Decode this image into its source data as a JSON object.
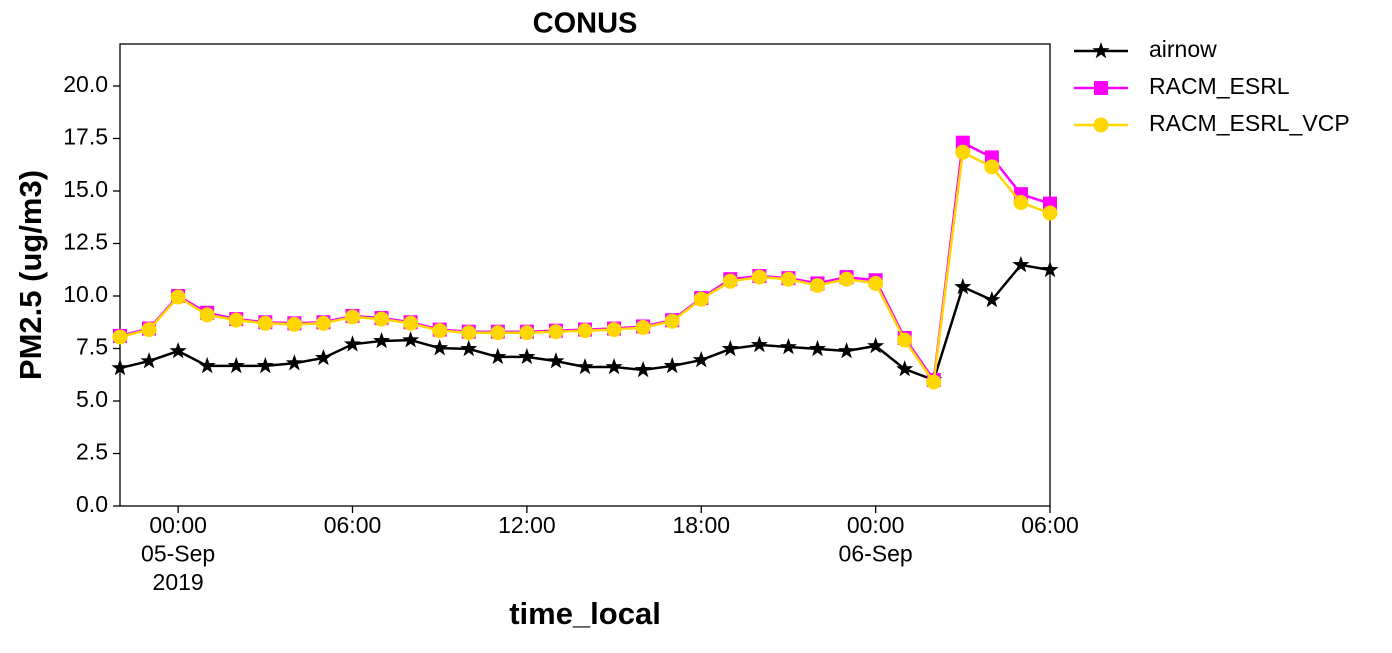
{
  "chart_data": {
    "type": "line",
    "title": "CONUS",
    "x_label": "time_local",
    "y_label": "PM2.5 (ug/m3)",
    "x": [
      "2019-09-04 22:00",
      "2019-09-04 23:00",
      "2019-09-05 00:00",
      "2019-09-05 01:00",
      "2019-09-05 02:00",
      "2019-09-05 03:00",
      "2019-09-05 04:00",
      "2019-09-05 05:00",
      "2019-09-05 06:00",
      "2019-09-05 07:00",
      "2019-09-05 08:00",
      "2019-09-05 09:00",
      "2019-09-05 10:00",
      "2019-09-05 11:00",
      "2019-09-05 12:00",
      "2019-09-05 13:00",
      "2019-09-05 14:00",
      "2019-09-05 15:00",
      "2019-09-05 16:00",
      "2019-09-05 17:00",
      "2019-09-05 18:00",
      "2019-09-05 19:00",
      "2019-09-05 20:00",
      "2019-09-05 21:00",
      "2019-09-05 22:00",
      "2019-09-05 23:00",
      "2019-09-06 00:00",
      "2019-09-06 01:00",
      "2019-09-06 02:00",
      "2019-09-06 03:00",
      "2019-09-06 04:00",
      "2019-09-06 05:00",
      "2019-09-06 06:00"
    ],
    "series": [
      {
        "name": "airnow",
        "color": "#000000",
        "marker": "star",
        "values": [
          6.57,
          6.9,
          7.38,
          6.67,
          6.67,
          6.67,
          6.8,
          7.05,
          7.7,
          7.86,
          7.9,
          7.52,
          7.48,
          7.1,
          7.1,
          6.9,
          6.62,
          6.62,
          6.48,
          6.67,
          6.95,
          7.48,
          7.67,
          7.57,
          7.48,
          7.38,
          7.62,
          6.52,
          6.0,
          10.43,
          9.81,
          11.48,
          11.24
        ]
      },
      {
        "name": "RACM_ESRL",
        "color": "#ff00ff",
        "marker": "square",
        "values": [
          8.1,
          8.45,
          10.0,
          9.2,
          8.9,
          8.75,
          8.7,
          8.75,
          9.05,
          8.95,
          8.75,
          8.4,
          8.3,
          8.3,
          8.3,
          8.35,
          8.4,
          8.45,
          8.55,
          8.85,
          9.9,
          10.8,
          10.95,
          10.85,
          10.6,
          10.9,
          10.75,
          8.0,
          6.0,
          17.3,
          16.6,
          14.85,
          14.4
        ]
      },
      {
        "name": "RACM_ESRL_VCP",
        "color": "#ffd700",
        "marker": "circle",
        "values": [
          8.05,
          8.4,
          9.95,
          9.1,
          8.85,
          8.7,
          8.65,
          8.7,
          9.0,
          8.9,
          8.7,
          8.35,
          8.25,
          8.25,
          8.25,
          8.3,
          8.35,
          8.4,
          8.5,
          8.8,
          9.85,
          10.7,
          10.9,
          10.8,
          10.5,
          10.8,
          10.6,
          7.9,
          5.9,
          16.85,
          16.15,
          14.45,
          13.95
        ]
      }
    ],
    "xlim": [
      "2019-09-04 22:00",
      "2019-09-06 06:00"
    ],
    "xticks": [
      {
        "value": "2019-09-05 00:00",
        "label": [
          "00:00",
          "05-Sep",
          "2019"
        ]
      },
      {
        "value": "2019-09-05 06:00",
        "label": [
          "06:00"
        ]
      },
      {
        "value": "2019-09-05 12:00",
        "label": [
          "12:00"
        ]
      },
      {
        "value": "2019-09-05 18:00",
        "label": [
          "18:00"
        ]
      },
      {
        "value": "2019-09-06 00:00",
        "label": [
          "00:00",
          "06-Sep"
        ]
      },
      {
        "value": "2019-09-06 06:00",
        "label": [
          "06:00"
        ]
      }
    ],
    "ylim": [
      0,
      22
    ],
    "yticks": [
      {
        "value": 0,
        "label": "0.0"
      },
      2.5,
      {
        "value": 5,
        "label": "5.0"
      },
      7.5,
      {
        "value": 10,
        "label": "10.0"
      },
      12.5,
      {
        "value": 15,
        "label": "15.0"
      },
      17.5,
      {
        "value": 20,
        "label": "20.0"
      }
    ],
    "grid": false,
    "legend": "outside upper right"
  }
}
